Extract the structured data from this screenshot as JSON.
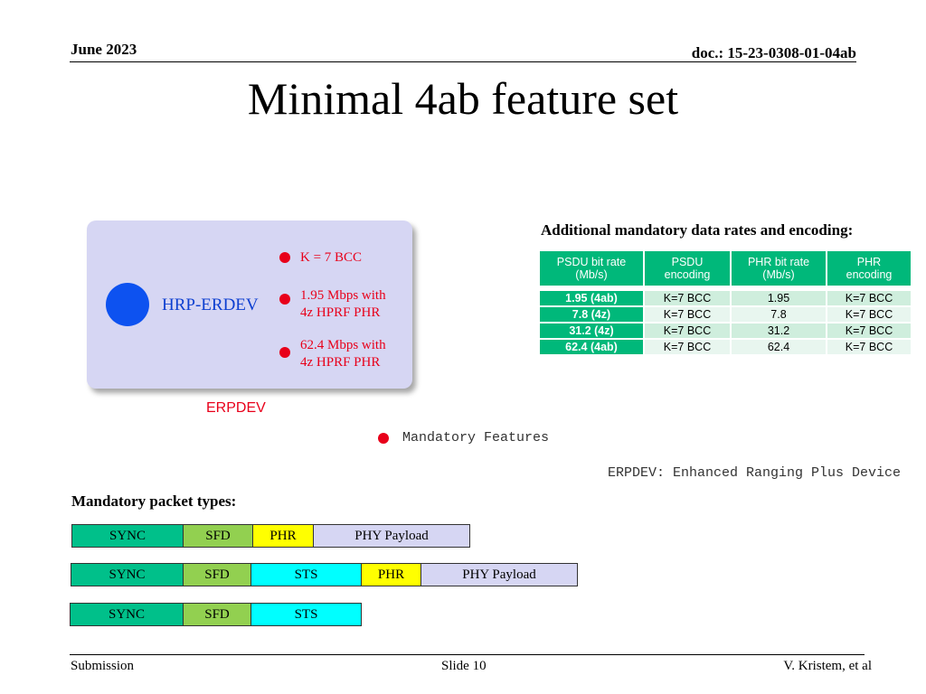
{
  "header": {
    "date": "June 2023",
    "doc": "doc.: 15-23-0308-01-04ab"
  },
  "title": "Minimal 4ab feature set",
  "device": {
    "name": "HRP-ERDEV",
    "features": [
      {
        "lines": [
          "K = 7 BCC"
        ]
      },
      {
        "lines": [
          "1.95 Mbps with",
          "4z HPRF PHR"
        ]
      },
      {
        "lines": [
          "62.4 Mbps with",
          "4z HPRF PHR"
        ]
      }
    ],
    "caption": "ERPDEV",
    "legend": "Mandatory Features",
    "definition": "ERPDEV: Enhanced Ranging Plus Device",
    "colors": {
      "device_dot": "#0d52f0",
      "feature_dot": "#e8001a"
    }
  },
  "rates": {
    "heading": "Additional mandatory data rates and encoding:",
    "columns": [
      [
        "PSDU bit rate",
        "(Mb/s)"
      ],
      [
        "PSDU",
        "encoding"
      ],
      [
        "PHR bit rate",
        "(Mb/s)"
      ],
      [
        "PHR",
        "encoding"
      ]
    ],
    "rows": [
      [
        "1.95 (4ab)",
        "K=7 BCC",
        "1.95",
        "K=7 BCC"
      ],
      [
        "7.8 (4z)",
        "K=7 BCC",
        "7.8",
        "K=7 BCC"
      ],
      [
        "31.2 (4z)",
        "K=7 BCC",
        "31.2",
        "K=7 BCC"
      ],
      [
        "62.4 (4ab)",
        "K=7 BCC",
        "62.4",
        "K=7 BCC"
      ]
    ]
  },
  "packets": {
    "heading": "Mandatory packet types:",
    "types": [
      [
        "SYNC",
        "SFD",
        "PHR",
        "PHY Payload"
      ],
      [
        "SYNC",
        "SFD",
        "STS",
        "PHR",
        "PHY Payload"
      ],
      [
        "SYNC",
        "SFD",
        "STS"
      ]
    ]
  },
  "footer": {
    "left": "Submission",
    "center": "Slide 10",
    "right": "V. Kristem, et al"
  }
}
